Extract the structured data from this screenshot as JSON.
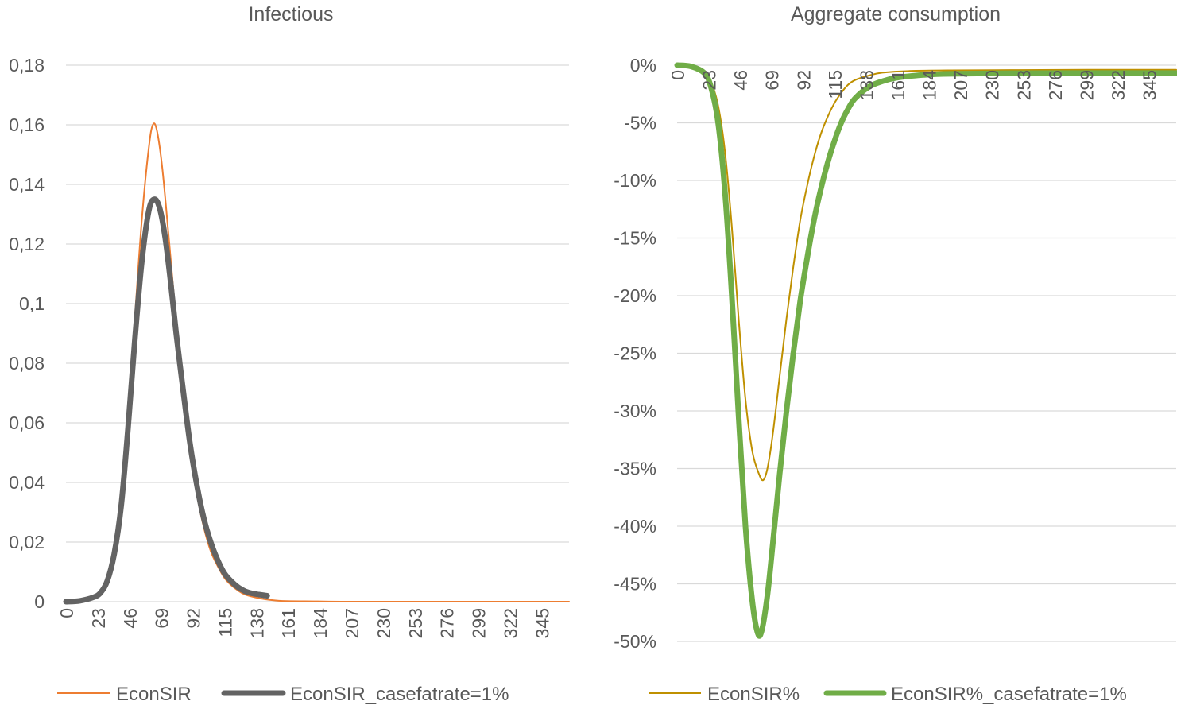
{
  "chart_data": [
    {
      "type": "line",
      "title": "Infectious",
      "xlabel": "",
      "ylabel": "",
      "x_ticks": [
        "0",
        "23",
        "46",
        "69",
        "92",
        "115",
        "138",
        "161",
        "184",
        "207",
        "230",
        "253",
        "276",
        "299",
        "322",
        "345"
      ],
      "y_ticks": [
        "0",
        "0,02",
        "0,04",
        "0,06",
        "0,08",
        "0,1",
        "0,12",
        "0,14",
        "0,16",
        "0,18"
      ],
      "ylim": [
        0,
        0.18
      ],
      "xlim": [
        0,
        365
      ],
      "grid": true,
      "legend_position": "bottom",
      "series": [
        {
          "name": "EconSIR",
          "color": "#ED7D31",
          "style": "thin",
          "points": [
            [
              0,
              0
            ],
            [
              10,
              0.0003
            ],
            [
              20,
              0.0015
            ],
            [
              25,
              0.003
            ],
            [
              30,
              0.007
            ],
            [
              35,
              0.016
            ],
            [
              40,
              0.032
            ],
            [
              45,
              0.06
            ],
            [
              50,
              0.095
            ],
            [
              55,
              0.128
            ],
            [
              60,
              0.152
            ],
            [
              63,
              0.16
            ],
            [
              66,
              0.158
            ],
            [
              70,
              0.145
            ],
            [
              75,
              0.12
            ],
            [
              80,
              0.094
            ],
            [
              85,
              0.07
            ],
            [
              90,
              0.05
            ],
            [
              95,
              0.036
            ],
            [
              100,
              0.025
            ],
            [
              105,
              0.017
            ],
            [
              110,
              0.012
            ],
            [
              115,
              0.008
            ],
            [
              120,
              0.0055
            ],
            [
              125,
              0.0037
            ],
            [
              130,
              0.0024
            ],
            [
              140,
              0.0012
            ],
            [
              150,
              0.0005
            ],
            [
              160,
              0.0002
            ],
            [
              180,
              0.0001
            ],
            [
              200,
              0
            ],
            [
              250,
              0
            ],
            [
              300,
              0
            ],
            [
              365,
              0
            ]
          ]
        },
        {
          "name": "EconSIR_casefatrate=1%",
          "color": "#636363",
          "style": "thick",
          "points": [
            [
              0,
              0
            ],
            [
              10,
              0.0003
            ],
            [
              20,
              0.0015
            ],
            [
              25,
              0.003
            ],
            [
              30,
              0.007
            ],
            [
              35,
              0.016
            ],
            [
              40,
              0.032
            ],
            [
              45,
              0.058
            ],
            [
              50,
              0.088
            ],
            [
              55,
              0.114
            ],
            [
              60,
              0.131
            ],
            [
              64,
              0.135
            ],
            [
              68,
              0.132
            ],
            [
              72,
              0.122
            ],
            [
              76,
              0.107
            ],
            [
              80,
              0.09
            ],
            [
              85,
              0.071
            ],
            [
              90,
              0.053
            ],
            [
              95,
              0.039
            ],
            [
              100,
              0.028
            ],
            [
              105,
              0.02
            ],
            [
              110,
              0.014
            ],
            [
              115,
              0.0095
            ],
            [
              120,
              0.0068
            ],
            [
              125,
              0.0048
            ],
            [
              130,
              0.0035
            ],
            [
              135,
              0.0028
            ],
            [
              140,
              0.0024
            ],
            [
              146,
              0.002
            ]
          ]
        }
      ]
    },
    {
      "type": "line",
      "title": "Aggregate consumption",
      "xlabel": "",
      "ylabel": "",
      "x_ticks": [
        "0",
        "23",
        "46",
        "69",
        "92",
        "115",
        "138",
        "161",
        "184",
        "207",
        "230",
        "253",
        "276",
        "299",
        "322",
        "345"
      ],
      "y_ticks": [
        "0%",
        "-5%",
        "-10%",
        "-15%",
        "-20%",
        "-25%",
        "-30%",
        "-35%",
        "-40%",
        "-45%",
        "-50%"
      ],
      "ylim": [
        -50,
        0
      ],
      "xlim": [
        0,
        365
      ],
      "grid": true,
      "legend_position": "bottom",
      "series": [
        {
          "name": "EconSIR%",
          "color": "#BF9000",
          "style": "thin",
          "points": [
            [
              0,
              0
            ],
            [
              10,
              -0.1
            ],
            [
              20,
              -0.6
            ],
            [
              25,
              -1.5
            ],
            [
              30,
              -3.5
            ],
            [
              35,
              -7.5
            ],
            [
              40,
              -14
            ],
            [
              45,
              -22
            ],
            [
              50,
              -29
            ],
            [
              55,
              -33.5
            ],
            [
              60,
              -35.5
            ],
            [
              63,
              -36
            ],
            [
              66,
              -35
            ],
            [
              70,
              -32
            ],
            [
              75,
              -27
            ],
            [
              80,
              -22
            ],
            [
              85,
              -17.5
            ],
            [
              90,
              -13.5
            ],
            [
              95,
              -10.5
            ],
            [
              100,
              -8
            ],
            [
              105,
              -6
            ],
            [
              110,
              -4.5
            ],
            [
              115,
              -3.3
            ],
            [
              120,
              -2.4
            ],
            [
              125,
              -1.7
            ],
            [
              130,
              -1.3
            ],
            [
              140,
              -0.9
            ],
            [
              150,
              -0.65
            ],
            [
              170,
              -0.5
            ],
            [
              200,
              -0.45
            ],
            [
              250,
              -0.42
            ],
            [
              300,
              -0.4
            ],
            [
              365,
              -0.4
            ]
          ]
        },
        {
          "name": "EconSIR%_casefatrate=1%",
          "color": "#70AD47",
          "style": "thick",
          "points": [
            [
              0,
              0
            ],
            [
              10,
              -0.1
            ],
            [
              20,
              -0.7
            ],
            [
              25,
              -2
            ],
            [
              30,
              -5
            ],
            [
              35,
              -11
            ],
            [
              40,
              -20
            ],
            [
              45,
              -30.5
            ],
            [
              50,
              -40
            ],
            [
              55,
              -46.5
            ],
            [
              59,
              -49.3
            ],
            [
              62,
              -49
            ],
            [
              66,
              -46
            ],
            [
              70,
              -41.5
            ],
            [
              75,
              -35.5
            ],
            [
              80,
              -30
            ],
            [
              85,
              -25
            ],
            [
              90,
              -20.5
            ],
            [
              95,
              -16.8
            ],
            [
              100,
              -13.5
            ],
            [
              105,
              -10.8
            ],
            [
              110,
              -8.5
            ],
            [
              115,
              -6.6
            ],
            [
              120,
              -5
            ],
            [
              125,
              -3.8
            ],
            [
              130,
              -2.9
            ],
            [
              140,
              -1.9
            ],
            [
              150,
              -1.4
            ],
            [
              160,
              -1.1
            ],
            [
              180,
              -0.85
            ],
            [
              200,
              -0.75
            ],
            [
              250,
              -0.7
            ],
            [
              300,
              -0.68
            ],
            [
              365,
              -0.68
            ]
          ]
        }
      ]
    }
  ]
}
